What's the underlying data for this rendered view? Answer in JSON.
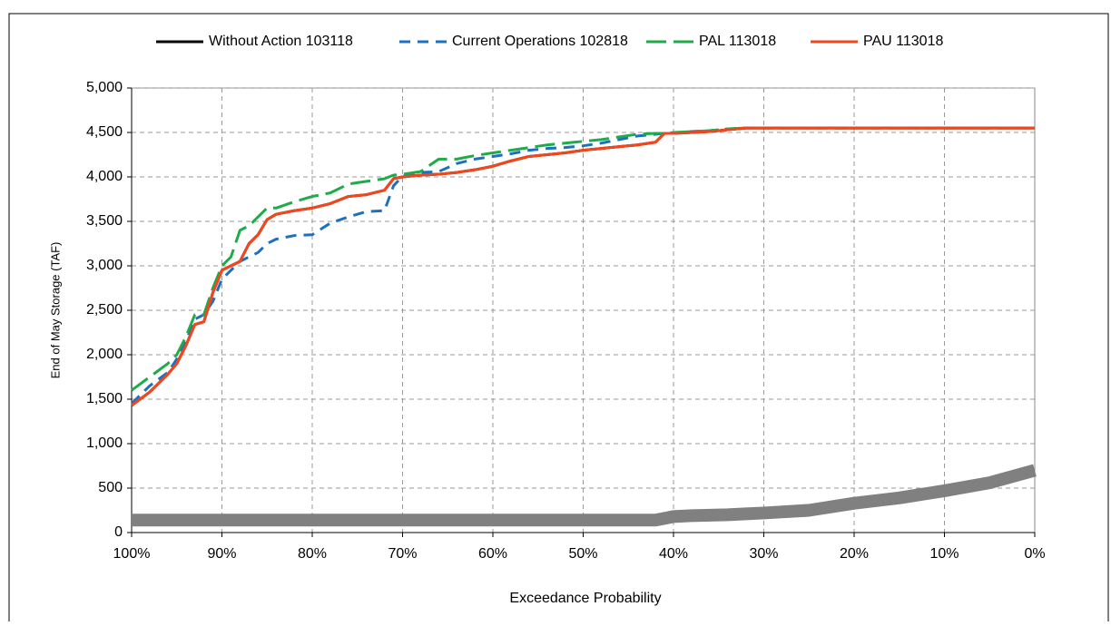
{
  "chart_data": {
    "type": "line",
    "xlabel": "Exceedance Probability",
    "ylabel": "End of  May Storage (TAF)",
    "x": [
      100,
      98,
      96,
      95,
      94,
      93,
      92,
      91,
      90,
      89,
      88,
      87,
      86,
      85,
      84,
      82,
      80,
      78,
      76,
      74,
      72,
      71,
      70,
      68,
      66,
      64,
      62,
      60,
      58,
      56,
      54,
      52,
      50,
      48,
      46,
      44,
      42,
      41,
      40,
      38,
      36,
      34,
      32,
      30,
      25,
      20,
      15,
      10,
      5,
      0
    ],
    "series": [
      {
        "name": "Without Action 103118",
        "color": "#000000",
        "style": "solid",
        "values": [
          1430,
          1580,
          1780,
          1900,
          2100,
          2340,
          2370,
          2700,
          2950,
          3000,
          3050,
          3250,
          3350,
          3520,
          3580,
          3620,
          3650,
          3700,
          3780,
          3800,
          3850,
          3980,
          4000,
          4020,
          4030,
          4050,
          4080,
          4120,
          4180,
          4230,
          4250,
          4270,
          4300,
          4320,
          4340,
          4360,
          4390,
          4490,
          4490,
          4500,
          4510,
          4530,
          4550,
          4550,
          4550,
          4550,
          4550,
          4550,
          4550,
          4550
        ]
      },
      {
        "name": "Current Operations 102818",
        "color": "#1f6fc0",
        "style": "dashed",
        "values": [
          1450,
          1650,
          1800,
          1950,
          2150,
          2400,
          2450,
          2600,
          2850,
          2950,
          3050,
          3100,
          3150,
          3250,
          3300,
          3340,
          3350,
          3480,
          3550,
          3610,
          3620,
          3900,
          4010,
          4050,
          4060,
          4150,
          4200,
          4230,
          4260,
          4300,
          4320,
          4330,
          4350,
          4380,
          4420,
          4460,
          4480,
          4490,
          4490,
          4510,
          4520,
          4540,
          4550,
          4550,
          4550,
          4550,
          4550,
          4550,
          4550,
          4550
        ]
      },
      {
        "name": "PAL 113018",
        "color": "#1fab4a",
        "style": "long-dash",
        "values": [
          1600,
          1750,
          1900,
          2000,
          2200,
          2450,
          2450,
          2750,
          3000,
          3100,
          3400,
          3450,
          3550,
          3650,
          3650,
          3720,
          3780,
          3820,
          3920,
          3950,
          3980,
          4020,
          4030,
          4060,
          4200,
          4200,
          4240,
          4270,
          4300,
          4330,
          4360,
          4380,
          4400,
          4420,
          4450,
          4480,
          4490,
          4490,
          4500,
          4510,
          4520,
          4540,
          4550,
          4550,
          4550,
          4550,
          4550,
          4550,
          4550,
          4550
        ]
      },
      {
        "name": "PAU 113018",
        "color": "#f2461c",
        "style": "solid",
        "values": [
          1430,
          1580,
          1780,
          1900,
          2100,
          2340,
          2370,
          2700,
          2950,
          3000,
          3050,
          3250,
          3350,
          3520,
          3580,
          3620,
          3650,
          3700,
          3780,
          3800,
          3850,
          3980,
          4000,
          4020,
          4030,
          4050,
          4080,
          4120,
          4180,
          4230,
          4250,
          4270,
          4300,
          4320,
          4340,
          4360,
          4390,
          4490,
          4490,
          4500,
          4510,
          4530,
          4550,
          4550,
          4550,
          4550,
          4550,
          4550,
          4550,
          4550
        ]
      }
    ],
    "band": {
      "color": "#808080",
      "values": [
        140,
        140,
        140,
        140,
        140,
        140,
        140,
        140,
        140,
        140,
        140,
        140,
        140,
        140,
        140,
        140,
        140,
        140,
        140,
        140,
        140,
        140,
        140,
        140,
        140,
        140,
        140,
        140,
        140,
        140,
        140,
        140,
        140,
        140,
        140,
        140,
        140,
        160,
        180,
        190,
        195,
        200,
        210,
        220,
        250,
        330,
        390,
        470,
        560,
        700
      ]
    },
    "xlim": [
      100,
      0
    ],
    "xticks": [
      {
        "value": 100,
        "label": "100%"
      },
      {
        "value": 90,
        "label": "90%"
      },
      {
        "value": 80,
        "label": "80%"
      },
      {
        "value": 70,
        "label": "70%"
      },
      {
        "value": 60,
        "label": "60%"
      },
      {
        "value": 50,
        "label": "50%"
      },
      {
        "value": 40,
        "label": "40%"
      },
      {
        "value": 30,
        "label": "30%"
      },
      {
        "value": 20,
        "label": "20%"
      },
      {
        "value": 10,
        "label": "10%"
      },
      {
        "value": 0,
        "label": "0%"
      }
    ],
    "ylim": [
      0,
      5000
    ],
    "yticks": [
      0,
      500,
      {
        "value": 1000,
        "label": "1,000"
      },
      {
        "value": 1500,
        "label": "1,500"
      },
      {
        "value": 2000,
        "label": "2,000"
      },
      {
        "value": 2500,
        "label": "2,500"
      },
      {
        "value": 3000,
        "label": "3,000"
      },
      {
        "value": 3500,
        "label": "3,500"
      },
      {
        "value": 4000,
        "label": "4,000"
      },
      {
        "value": 4500,
        "label": "4,500"
      },
      {
        "value": 5000,
        "label": "5,000"
      }
    ],
    "grid": true,
    "legend": "top"
  }
}
